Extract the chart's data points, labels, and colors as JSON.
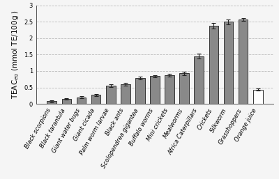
{
  "categories": [
    "Black scorpions",
    "Black tarantula",
    "Giant water bugs",
    "Giant cicada",
    "Palm worm larvae",
    "Black ants",
    "Scolopendrea gigantea",
    "Buffalo worms",
    "Mini crickets",
    "Mealworms",
    "Africa Caterpillars",
    "Crickets",
    "Silkworm",
    "Grasshoppers",
    "Orange juice"
  ],
  "values": [
    0.08,
    0.15,
    0.2,
    0.27,
    0.56,
    0.59,
    0.78,
    0.84,
    0.87,
    0.93,
    1.45,
    2.38,
    2.5,
    2.57,
    0.43
  ],
  "errors": [
    0.03,
    0.03,
    0.03,
    0.03,
    0.04,
    0.04,
    0.04,
    0.04,
    0.04,
    0.05,
    0.07,
    0.08,
    0.07,
    0.04,
    0.03
  ],
  "bar_colors": [
    "#898989",
    "#898989",
    "#898989",
    "#898989",
    "#898989",
    "#898989",
    "#898989",
    "#898989",
    "#898989",
    "#898989",
    "#898989",
    "#898989",
    "#898989",
    "#898989",
    "#ffffff"
  ],
  "bar_edgecolors": [
    "#333333",
    "#333333",
    "#333333",
    "#333333",
    "#333333",
    "#333333",
    "#333333",
    "#333333",
    "#333333",
    "#333333",
    "#333333",
    "#333333",
    "#333333",
    "#333333",
    "#333333"
  ],
  "ylabel": "TEAC$_{eq}$ (mmol TE/100g )",
  "ylim": [
    0,
    3.0
  ],
  "yticks": [
    0,
    0.5,
    1.0,
    1.5,
    2.0,
    2.5,
    3.0
  ],
  "grid_color": "#bbbbbb",
  "background_color": "#f5f5f5",
  "tick_fontsize": 6,
  "ylabel_fontsize": 7.5,
  "bar_width": 0.65
}
